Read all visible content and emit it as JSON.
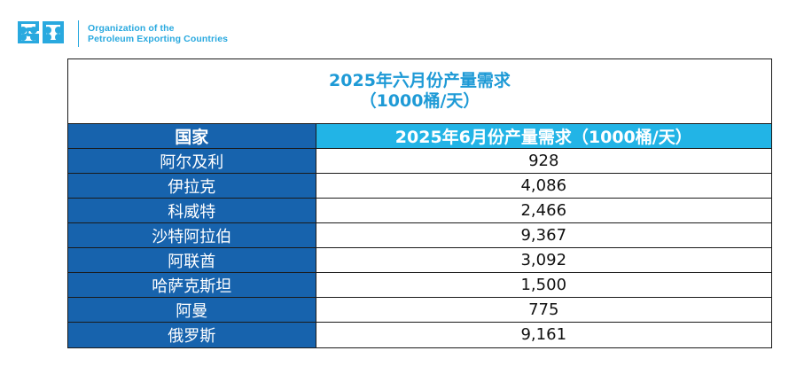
{
  "org": {
    "name_line1": "Organization of the",
    "name_line2": "Petroleum Exporting Countries",
    "logo_icon": "opec-logo-icon",
    "brand_color": "#29a9df"
  },
  "title": {
    "line1": "2025年六月份产量需求",
    "line2": "（1000桶/天）"
  },
  "table": {
    "headers": [
      "国家",
      "2025年6月份产量需求（1000桶/天）"
    ],
    "header_colors": [
      "#1763ad",
      "#22b4e6"
    ],
    "rows": [
      {
        "country": "阿尔及利",
        "value": "928"
      },
      {
        "country": "伊拉克",
        "value": "4,086"
      },
      {
        "country": "科威特",
        "value": "2,466"
      },
      {
        "country": "沙特阿拉伯",
        "value": "9,367"
      },
      {
        "country": "阿联酋",
        "value": "3,092"
      },
      {
        "country": "哈萨克斯坦",
        "value": "1,500"
      },
      {
        "country": "阿曼",
        "value": "775"
      },
      {
        "country": "俄罗斯",
        "value": "9,161"
      }
    ]
  }
}
